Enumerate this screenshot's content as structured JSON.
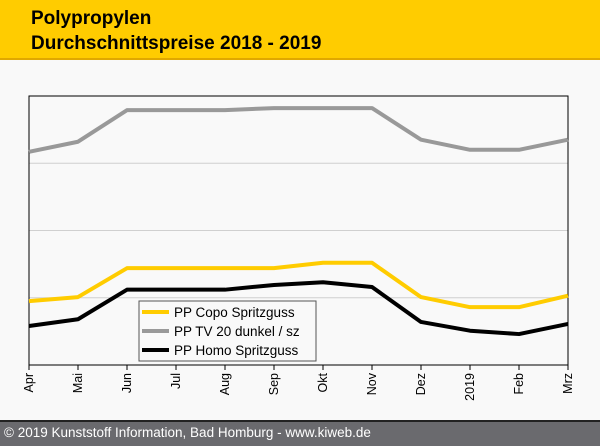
{
  "header": {
    "title_line1": "Polypropylen",
    "title_line2": "Durchschnittspreise 2018 - 2019"
  },
  "footer": {
    "copyright": "© 2019 Kunststoff Information, Bad Homburg - www.kiweb.de"
  },
  "chart_data": {
    "type": "line",
    "title": "Polypropylen Durchschnittspreise 2018 - 2019",
    "xlabel": "",
    "ylabel": "",
    "categories": [
      "Apr",
      "Mai",
      "Jun",
      "Jul",
      "Aug",
      "Sep",
      "Okt",
      "Nov",
      "Dez",
      "2019",
      "Feb",
      "Mrz"
    ],
    "ylim": [
      0,
      4
    ],
    "grid": true,
    "legend": "bottom-left",
    "series": [
      {
        "name": "PP Copo Spritzguss",
        "color": "#ffcc00",
        "values": [
          0.95,
          1.01,
          1.44,
          1.44,
          1.44,
          1.44,
          1.52,
          1.52,
          1.01,
          0.86,
          0.86,
          1.03
        ]
      },
      {
        "name": "PP TV 20 dunkel / sz",
        "color": "#999999",
        "values": [
          3.17,
          3.32,
          3.79,
          3.79,
          3.79,
          3.82,
          3.82,
          3.82,
          3.35,
          3.2,
          3.2,
          3.35
        ]
      },
      {
        "name": "PP Homo Spritzguss",
        "color": "#000000",
        "values": [
          0.58,
          0.68,
          1.12,
          1.12,
          1.12,
          1.19,
          1.23,
          1.16,
          0.64,
          0.51,
          0.46,
          0.61
        ]
      }
    ]
  }
}
